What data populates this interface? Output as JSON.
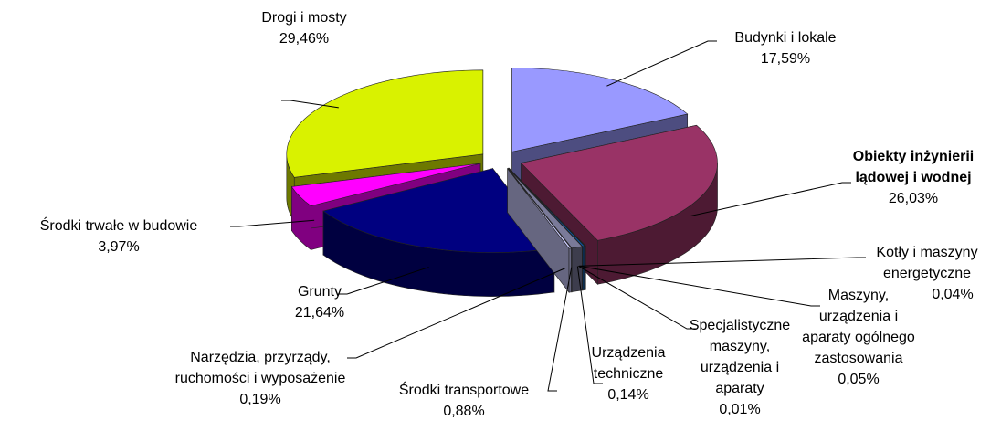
{
  "chart_data": {
    "type": "pie3d",
    "categories": [
      "Budynki i lokale",
      "Obiekty inżynierii lądowej i wodnej",
      "Kotły i maszyny energetyczne",
      "Maszyny, urządzenia i aparaty ogólnego zastosowania",
      "Specjalistyczne maszyny, urządzenia i aparaty",
      "Urządzenia techniczne",
      "Środki transportowe",
      "Narzędzia, przyrządy, ruchomości i wyposażenie",
      "Grunty",
      "Środki trwałe w budowie",
      "Drogi i mosty"
    ],
    "values": [
      17.59,
      26.03,
      0.04,
      0.05,
      0.01,
      0.14,
      0.88,
      0.19,
      21.64,
      3.97,
      29.46
    ],
    "value_labels": [
      "17,59%",
      "26,03%",
      "0,04%",
      "0,05%",
      "0,01%",
      "0,14%",
      "0,88%",
      "0,19%",
      "21,64%",
      "3,97%",
      "29,46%"
    ],
    "colors": [
      "#9999ff",
      "#993366",
      "#ffffcc",
      "#ccffff",
      "#660066",
      "#0066cc",
      "#7a7a99",
      "#ccccff",
      "#000080",
      "#ff00ff",
      "#d9f200"
    ]
  }
}
